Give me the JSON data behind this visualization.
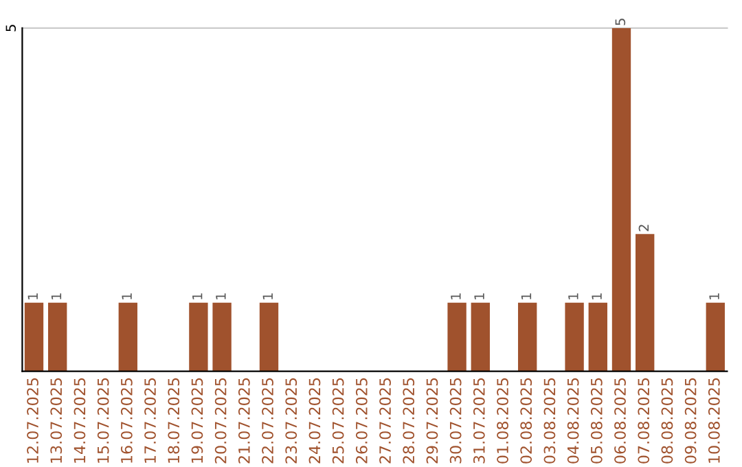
{
  "chart_data": {
    "type": "bar",
    "categories": [
      "12.07.2025",
      "13.07.2025",
      "14.07.2025",
      "15.07.2025",
      "16.07.2025",
      "17.07.2025",
      "18.07.2025",
      "19.07.2025",
      "20.07.2025",
      "21.07.2025",
      "22.07.2025",
      "23.07.2025",
      "24.07.2025",
      "25.07.2025",
      "26.07.2025",
      "27.07.2025",
      "28.07.2025",
      "29.07.2025",
      "30.07.2025",
      "31.07.2025",
      "01.08.2025",
      "02.08.2025",
      "03.08.2025",
      "04.08.2025",
      "05.08.2025",
      "06.08.2025",
      "07.08.2025",
      "08.08.2025",
      "09.08.2025",
      "10.08.2025"
    ],
    "values": [
      1,
      1,
      0,
      0,
      1,
      0,
      0,
      1,
      1,
      0,
      1,
      0,
      0,
      0,
      0,
      0,
      0,
      0,
      1,
      1,
      0,
      1,
      0,
      1,
      1,
      5,
      2,
      0,
      0,
      1
    ],
    "value_labels": [
      "1",
      "1",
      null,
      null,
      "1",
      null,
      null,
      "1",
      "1",
      null,
      "1",
      null,
      null,
      null,
      null,
      null,
      null,
      null,
      "1",
      "1",
      null,
      "1",
      null,
      "1",
      "1",
      "5",
      "2",
      null,
      null,
      "1"
    ],
    "color": "#a0522d",
    "ylim": [
      0,
      5
    ],
    "yticks": [
      5
    ],
    "ref_lines": [
      {
        "axis": "y",
        "value": 5,
        "color": "#cccccc"
      }
    ]
  }
}
